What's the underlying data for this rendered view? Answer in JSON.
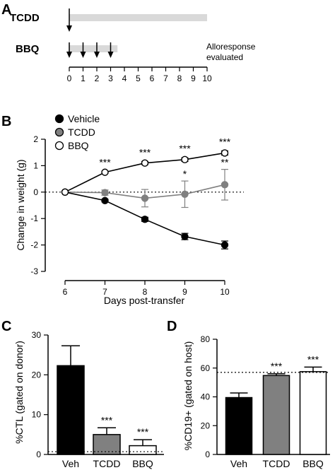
{
  "panels": {
    "a": "A",
    "b": "B",
    "c": "C",
    "d": "D"
  },
  "panel_a": {
    "treatments": [
      "TCDD",
      "BBQ"
    ],
    "annotation": [
      "Alloresponse",
      "evaluated"
    ],
    "days": [
      0,
      1,
      2,
      3,
      4,
      5,
      6,
      7,
      8,
      9,
      10
    ],
    "tcdd_bar_days": [
      0,
      10
    ],
    "bbq_bar_days": [
      0,
      3.5
    ],
    "tcdd_dose_days": [
      0
    ],
    "bbq_dose_days": [
      0,
      1,
      2,
      3
    ],
    "bar_color": "#d9d9d9"
  },
  "chart_data": [
    {
      "type": "line",
      "xlabel": "Days post-transfer",
      "ylabel": "Change in weight (g)",
      "x": [
        6,
        7,
        8,
        9,
        10
      ],
      "xlim": [
        6,
        10
      ],
      "ylim": [
        -3,
        2
      ],
      "yticks": [
        "-3",
        "-2",
        "-1",
        "0",
        "1",
        "2"
      ],
      "xticks": [
        "6",
        "7",
        "8",
        "9",
        "10"
      ],
      "series": [
        {
          "name": "Vehicle",
          "values": [
            0,
            -0.32,
            -1.03,
            -1.68,
            -2.0
          ],
          "errors": [
            0,
            0.05,
            0.08,
            0.12,
            0.15
          ],
          "color": "#000000",
          "marker": "filled",
          "sig": [
            "",
            "",
            "",
            "",
            ""
          ]
        },
        {
          "name": "TCDD",
          "values": [
            0,
            -0.02,
            -0.23,
            -0.08,
            0.28
          ],
          "errors": [
            0,
            0.1,
            0.33,
            0.5,
            0.58
          ],
          "color": "#808080",
          "marker": "gray",
          "sig": [
            "",
            "",
            "",
            "*",
            "**"
          ]
        },
        {
          "name": "BBQ",
          "values": [
            0,
            0.75,
            1.1,
            1.23,
            1.48
          ],
          "errors": [
            0,
            0.04,
            0.06,
            0.07,
            0.08
          ],
          "color": "#000000",
          "marker": "open",
          "sig": [
            "",
            "***",
            "***",
            "***",
            "***"
          ]
        }
      ],
      "reference_line": 0
    },
    {
      "type": "bar",
      "ylabel": "%CTL (gated on donor)",
      "categories": [
        "Veh",
        "TCDD",
        "BBQ"
      ],
      "values": [
        22.3,
        5.0,
        2.2
      ],
      "errors": [
        5.0,
        1.7,
        1.5
      ],
      "colors": [
        "#000000",
        "#808080",
        "#ffffff"
      ],
      "sig": [
        "",
        "***",
        "***"
      ],
      "ylim": [
        0,
        30
      ],
      "yticks": [
        "0",
        "10",
        "20",
        "30"
      ],
      "reference_line": 0.7
    },
    {
      "type": "bar",
      "ylabel": "%CD19+ (gated on host)",
      "categories": [
        "Veh",
        "TCDD",
        "BBQ"
      ],
      "values": [
        39.5,
        54.8,
        57.5
      ],
      "errors": [
        3.2,
        1.2,
        3.2
      ],
      "colors": [
        "#000000",
        "#808080",
        "#ffffff"
      ],
      "sig": [
        "",
        "***",
        "***"
      ],
      "ylim": [
        0,
        80
      ],
      "yticks": [
        "0",
        "20",
        "40",
        "60",
        "80"
      ],
      "reference_line": 57.0
    }
  ]
}
